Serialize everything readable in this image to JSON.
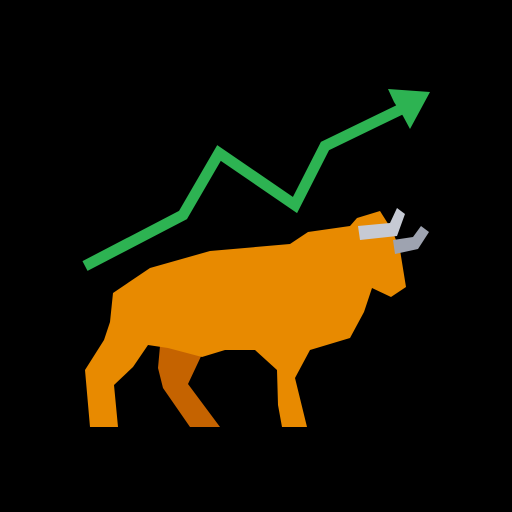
{
  "icon": {
    "name": "bull-market-icon",
    "colors": {
      "background": "#000000",
      "trend_line": "#2db352",
      "bull_body": "#e88a00",
      "bull_shadow": "#c56300",
      "horn_light": "#c6cad4",
      "horn_dark": "#9ea3b0"
    }
  }
}
